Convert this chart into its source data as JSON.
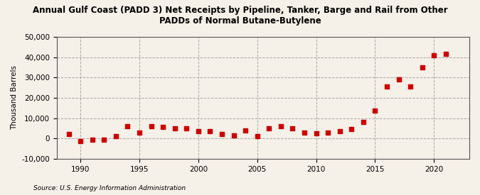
{
  "title": "Annual Gulf Coast (PADD 3) Net Receipts by Pipeline, Tanker, Barge and Rail from Other\nPADDs of Normal Butane-Butylene",
  "ylabel": "Thousand Barrels",
  "source": "Source: U.S. Energy Information Administration",
  "background_color": "#f5f0e8",
  "marker_color": "#cc0000",
  "years": [
    1989,
    1990,
    1991,
    1992,
    1993,
    1994,
    1995,
    1996,
    1997,
    1998,
    1999,
    2000,
    2001,
    2002,
    2003,
    2004,
    2005,
    2006,
    2007,
    2008,
    2009,
    2010,
    2011,
    2012,
    2013,
    2014,
    2015,
    2016,
    2017,
    2018,
    2019,
    2020,
    2021
  ],
  "values": [
    2000,
    -1500,
    -500,
    -500,
    1000,
    6000,
    3000,
    6000,
    5500,
    5000,
    5000,
    3500,
    3500,
    2000,
    1500,
    4000,
    1000,
    5000,
    6000,
    5000,
    3000,
    2500,
    3000,
    3500,
    4500,
    8000,
    13500,
    25500,
    29000,
    25500,
    35000,
    41000,
    41500
  ],
  "xlim": [
    1988,
    2023
  ],
  "ylim": [
    -10000,
    50000
  ],
  "yticks": [
    -10000,
    0,
    10000,
    20000,
    30000,
    40000,
    50000
  ],
  "xticks": [
    1990,
    1995,
    2000,
    2005,
    2010,
    2015,
    2020
  ]
}
